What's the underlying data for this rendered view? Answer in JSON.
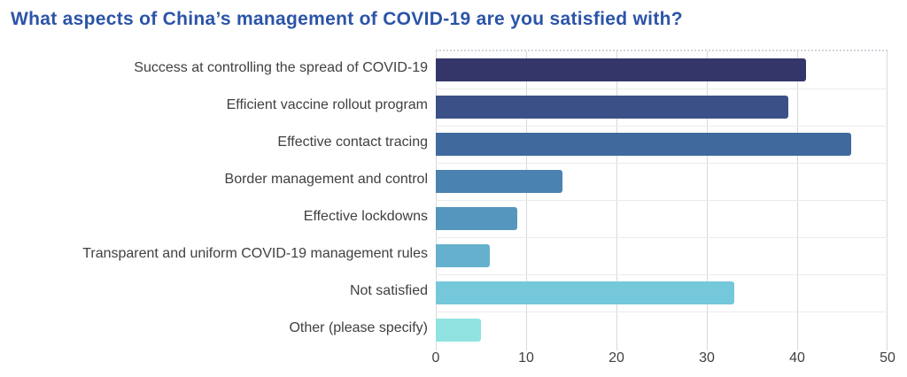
{
  "header": {
    "title": "What aspects of China’s management of COVID-19 are you satisfied with?",
    "title_color": "#2b54a8"
  },
  "chart_data": {
    "type": "bar",
    "orientation": "horizontal",
    "title": "What aspects of China’s management of COVID-19 are you satisfied with?",
    "categories": [
      "Success at controlling the spread of COVID-19",
      "Efficient vaccine rollout program",
      "Effective contact tracing",
      "Border management and control",
      "Effective lockdowns",
      "Transparent and uniform COVID-19 management rules",
      "Not satisfied",
      "Other (please specify)"
    ],
    "values": [
      41,
      39,
      46,
      14,
      9,
      6,
      33,
      5
    ],
    "bar_colors": [
      "#343669",
      "#3b5086",
      "#406a9e",
      "#4a82b0",
      "#5496bd",
      "#65b0cd",
      "#75c7da",
      "#90e3e0"
    ],
    "xlabel": "",
    "ylabel": "",
    "xlim": [
      0,
      50
    ],
    "x_ticks": [
      0,
      10,
      20,
      30,
      40,
      50
    ],
    "legend": "none",
    "grid": "vertical-light",
    "gridline_color": "#d9d9d9",
    "row_separator_color": "#ebebeb",
    "axis_text_color": "#404040",
    "label_text_color": "#404040",
    "background_color": "#ffffff"
  }
}
